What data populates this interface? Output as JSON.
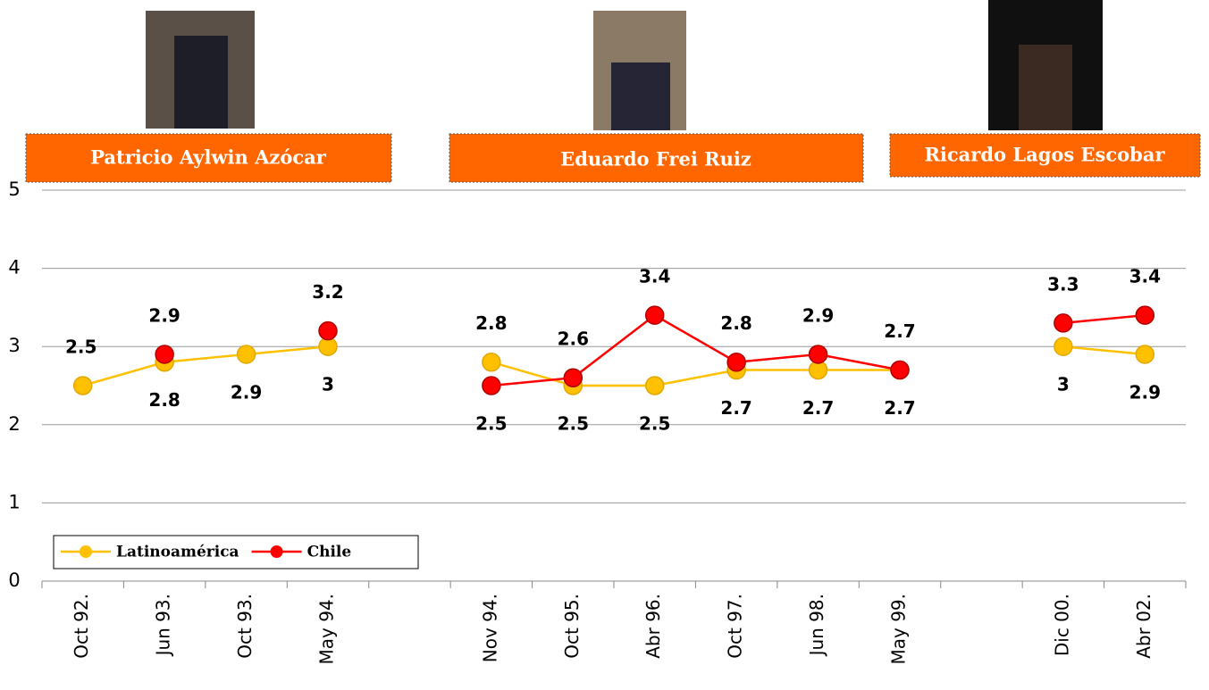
{
  "chart_data": {
    "type": "line",
    "annotations": [
      "Patricio Aylwin Azócar",
      "Eduardo Frei Ruiz",
      "Ricardo Lagos Escobar"
    ],
    "categories": [
      "Oct 92.",
      "Jun 93.",
      "Oct 93.",
      "May 94.",
      null,
      "Nov 94.",
      "Oct 95.",
      "Abr 96.",
      "Oct 97.",
      "Jun 98.",
      "May 99.",
      null,
      "Dic 00.",
      "Abr 02."
    ],
    "series": [
      {
        "name": "Latinoamérica",
        "color": "#FFC000",
        "values": [
          2.5,
          2.8,
          2.9,
          3,
          null,
          2.8,
          2.5,
          2.5,
          2.7,
          2.7,
          2.7,
          null,
          3,
          2.9
        ]
      },
      {
        "name": "Chile",
        "color": "#FF0000",
        "values": [
          null,
          2.9,
          null,
          3.2,
          null,
          2.5,
          2.6,
          3.4,
          2.8,
          2.9,
          2.7,
          null,
          3.3,
          3.4
        ]
      }
    ],
    "ylim": [
      0,
      5
    ],
    "yticks": [
      0,
      1,
      2,
      3,
      4,
      5
    ],
    "grid": true,
    "legend": "bottom-left"
  }
}
